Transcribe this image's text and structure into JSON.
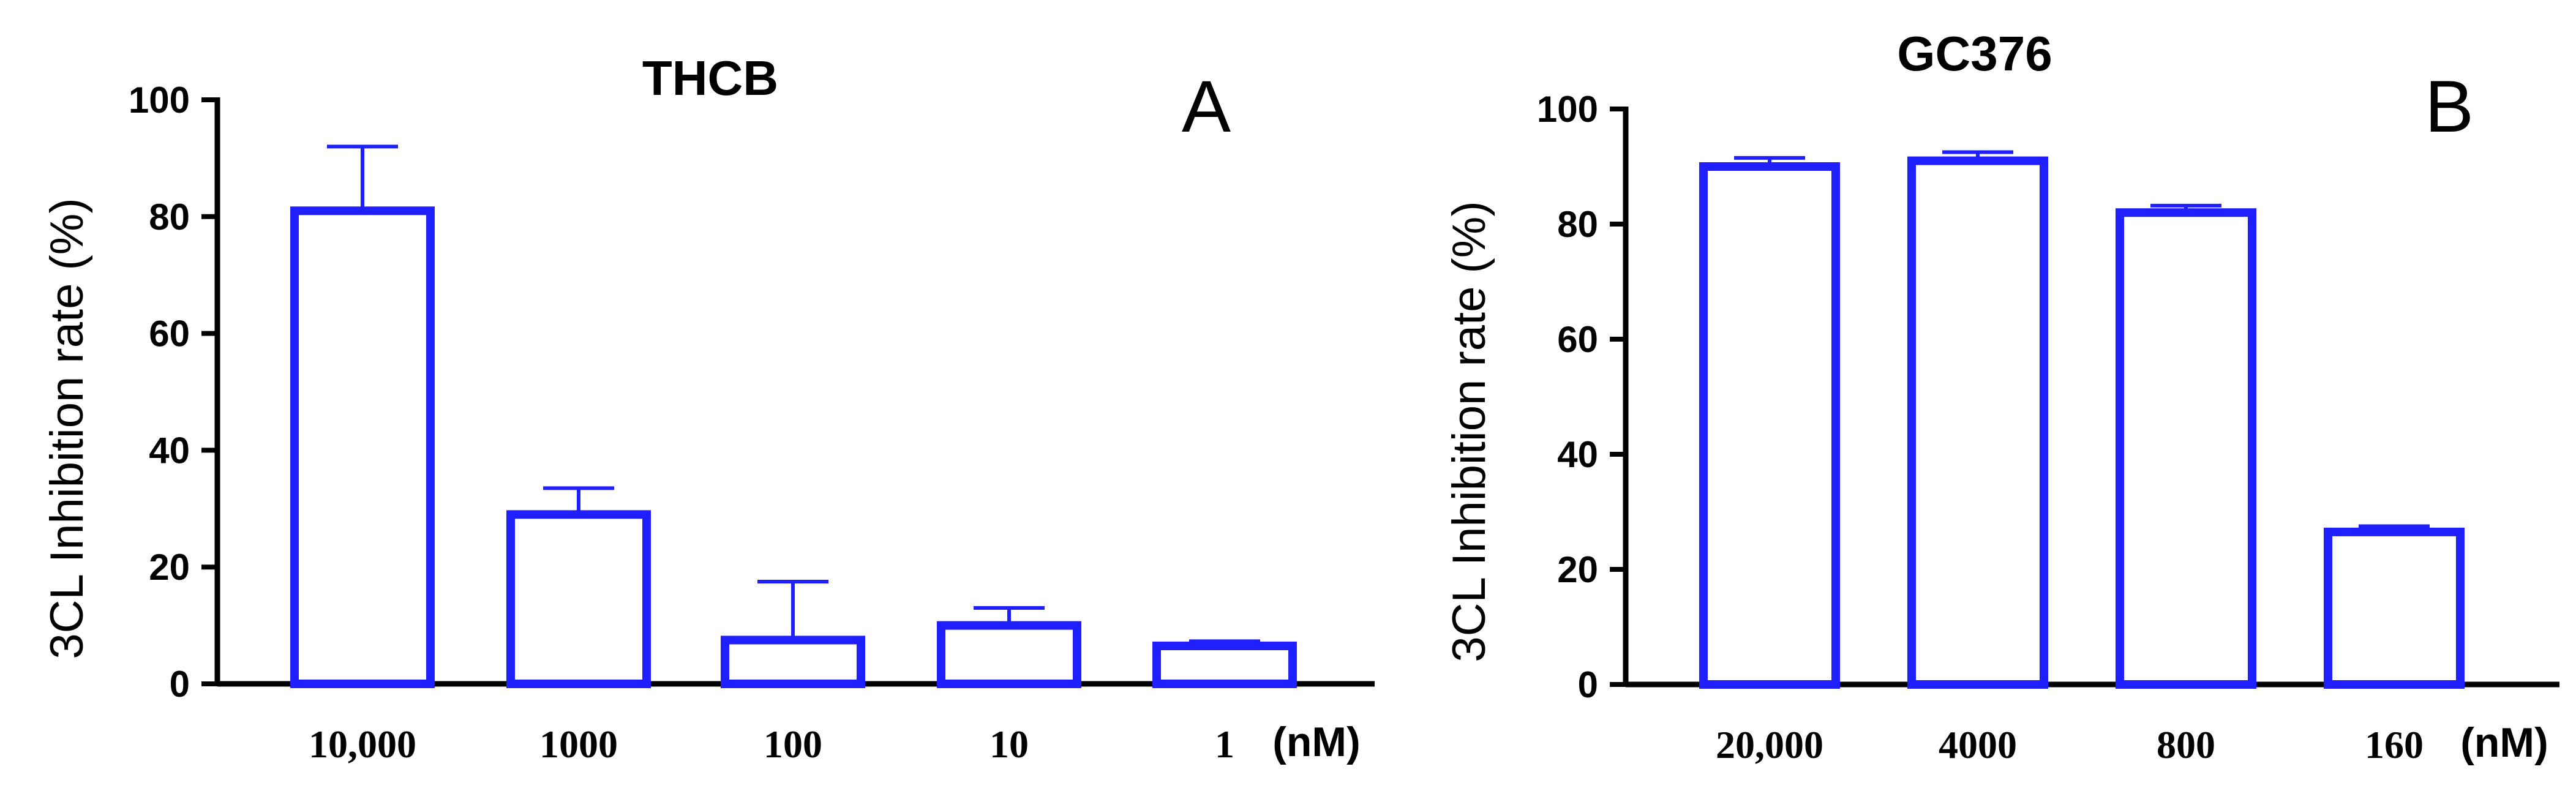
{
  "chart_data": [
    {
      "type": "bar",
      "panel": "A",
      "title": "THCB",
      "ylabel": "3CL Inhibition rate (%)",
      "xlabel": "",
      "x_unit": "(nM)",
      "categories": [
        "10,000",
        "1000",
        "100",
        "10",
        "1"
      ],
      "values": [
        81,
        29,
        7.5,
        10,
        6.5
      ],
      "errors": [
        11,
        4.5,
        10,
        3,
        0.8
      ],
      "ylim": [
        0,
        100
      ],
      "yticks": [
        0,
        20,
        40,
        60,
        80,
        100
      ],
      "grid": false,
      "bar_color": "#1f1fff"
    },
    {
      "type": "bar",
      "panel": "B",
      "title": "GC376",
      "ylabel": "3CL Inhibition rate (%)",
      "xlabel": "",
      "x_unit": "(nM)",
      "categories": [
        "20,000",
        "4000",
        "800",
        "160"
      ],
      "values": [
        90,
        91,
        82,
        26.5
      ],
      "errors": [
        1.5,
        1.5,
        1.2,
        1
      ],
      "ylim": [
        0,
        100
      ],
      "yticks": [
        0,
        20,
        40,
        60,
        80,
        100
      ],
      "grid": false,
      "bar_color": "#1f1fff"
    }
  ]
}
